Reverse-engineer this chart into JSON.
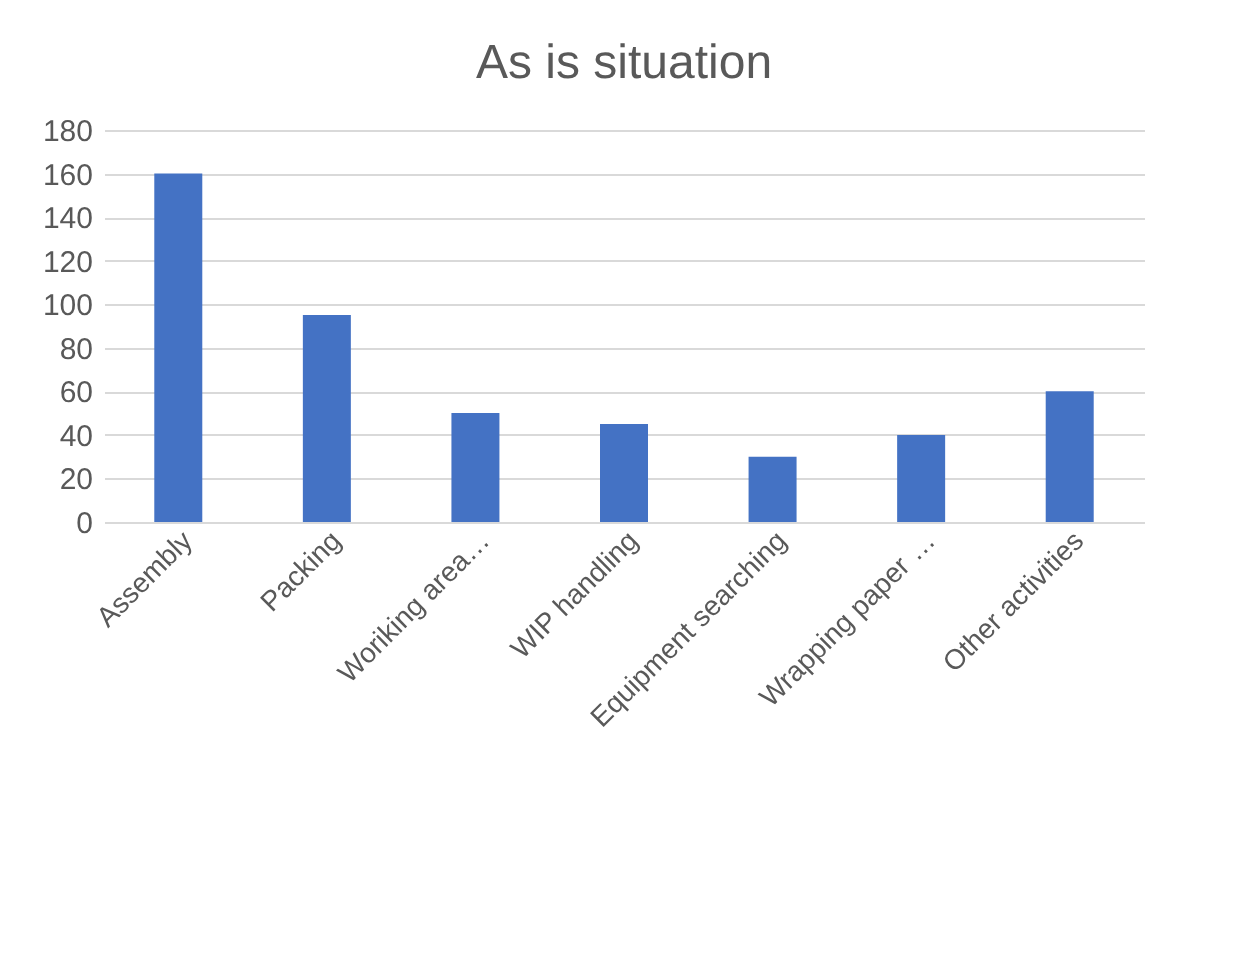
{
  "chart_data": {
    "type": "bar",
    "title": "As is situation",
    "categories": [
      "Assembly",
      "Packing",
      "Woriking area…",
      "WIP handling",
      "Equipment searching",
      "Wrapping paper …",
      "Other activities"
    ],
    "values": [
      160,
      95,
      50,
      45,
      30,
      40,
      60
    ],
    "color": "#4472c4",
    "ylim": [
      0,
      180
    ],
    "yticks": [
      0,
      20,
      40,
      60,
      80,
      100,
      120,
      140,
      160,
      180
    ],
    "grid": "y"
  }
}
